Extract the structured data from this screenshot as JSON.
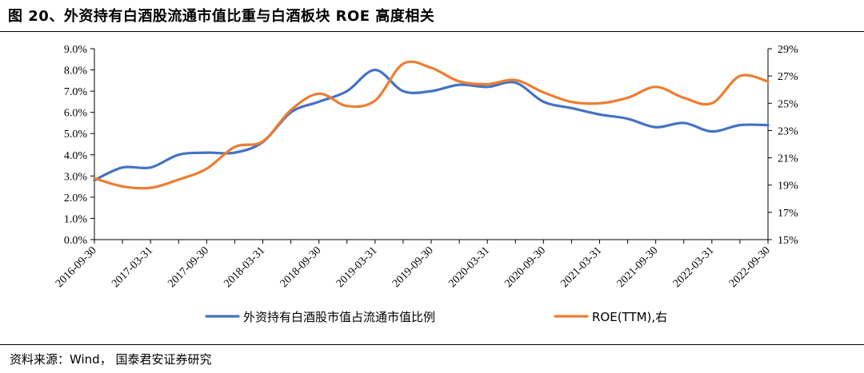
{
  "title": "图 20、外资持有白酒股流通市值比重与白酒板块 ROE 高度相关",
  "source": "资料来源：Wind， 国泰君安证券研究",
  "chart_data": {
    "type": "line",
    "categories": [
      "2016-09-30",
      "2016-12-31",
      "2017-03-31",
      "2017-06-30",
      "2017-09-30",
      "2017-12-31",
      "2018-03-31",
      "2018-06-30",
      "2018-09-30",
      "2018-12-31",
      "2019-03-31",
      "2019-06-30",
      "2019-09-30",
      "2019-12-31",
      "2020-03-31",
      "2020-06-30",
      "2020-09-30",
      "2020-12-31",
      "2021-03-31",
      "2021-06-30",
      "2021-09-30",
      "2021-12-31",
      "2022-03-31",
      "2022-06-30",
      "2022-09-30"
    ],
    "x_tick_labels": [
      "2016-09-30",
      "2017-03-31",
      "2017-09-30",
      "2018-03-31",
      "2018-09-30",
      "2019-03-31",
      "2019-09-30",
      "2020-03-31",
      "2020-09-30",
      "2021-03-31",
      "2021-09-30",
      "2022-03-31",
      "2022-09-30"
    ],
    "left_axis": {
      "ylim": [
        0,
        9
      ],
      "ticks": [
        "0.0%",
        "1.0%",
        "2.0%",
        "3.0%",
        "4.0%",
        "5.0%",
        "6.0%",
        "7.0%",
        "8.0%",
        "9.0%"
      ]
    },
    "right_axis": {
      "ylim": [
        15,
        29
      ],
      "ticks": [
        "15%",
        "17%",
        "19%",
        "21%",
        "23%",
        "25%",
        "27%",
        "29%"
      ]
    },
    "series": [
      {
        "name": "外资持有白酒股市值占流通市值比例",
        "axis": "left",
        "color": "#4472C4",
        "values": [
          2.8,
          3.4,
          3.4,
          4.0,
          4.1,
          4.1,
          4.6,
          6.0,
          6.5,
          7.0,
          8.0,
          7.0,
          7.0,
          7.3,
          7.2,
          7.4,
          6.5,
          6.2,
          5.9,
          5.7,
          5.3,
          5.5,
          5.1,
          5.4,
          5.4
        ]
      },
      {
        "name": "ROE(TTM),右",
        "axis": "right",
        "color": "#ED7D31",
        "values": [
          19.5,
          18.9,
          18.8,
          19.4,
          20.2,
          21.8,
          22.2,
          24.5,
          25.7,
          24.8,
          25.2,
          27.9,
          27.6,
          26.6,
          26.4,
          26.7,
          25.8,
          25.1,
          25.0,
          25.4,
          26.2,
          25.4,
          25.0,
          27.0,
          26.6
        ]
      }
    ],
    "legend_position": "bottom"
  }
}
